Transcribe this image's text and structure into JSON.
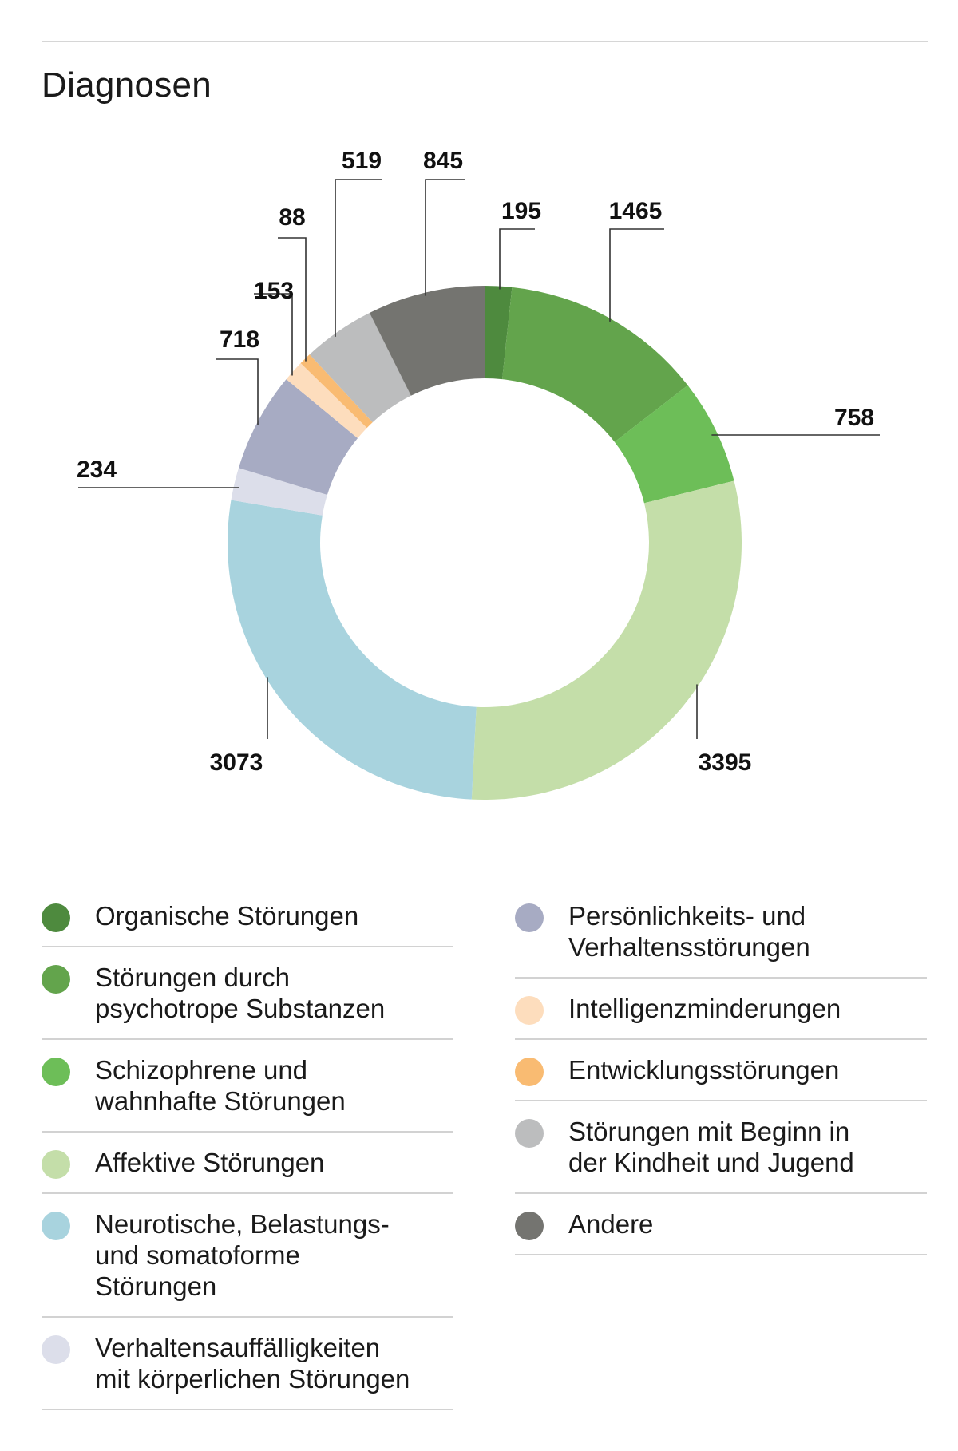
{
  "title": "Diagnosen",
  "chart_data": {
    "type": "pie",
    "variant": "donut",
    "start_angle_deg": 0,
    "direction": "clockwise",
    "slices": [
      {
        "label": "Organische Störungen",
        "value": 195,
        "value_label": "195",
        "color": "#4e8a3e"
      },
      {
        "label": "Störungen durch psychotrope Substanzen",
        "value": 1465,
        "value_label": "1465",
        "color": "#63a44c"
      },
      {
        "label": "Schizophrene und wahnhafte Störungen",
        "value": 758,
        "value_label": "758",
        "color": "#6dbe58"
      },
      {
        "label": "Affektive Störungen",
        "value": 3395,
        "value_label": "3395",
        "color": "#c4dea9"
      },
      {
        "label": "Neurotische, Belastungs- und somatoforme Störungen",
        "value": 3073,
        "value_label": "3073",
        "color": "#a8d3de"
      },
      {
        "label": "Verhaltensauffälligkeiten mit körperlichen Störungen",
        "value": 234,
        "value_label": "234",
        "color": "#dcdeea"
      },
      {
        "label": "Persönlichkeits- und Verhaltensstörungen",
        "value": 718,
        "value_label": "718",
        "color": "#a7abc3"
      },
      {
        "label": "Intelligenzminderungen",
        "value": 153,
        "value_label": "153",
        "color": "#fdddbd"
      },
      {
        "label": "Entwicklungsstörungen",
        "value": 88,
        "value_label": "88",
        "color": "#f9bb72"
      },
      {
        "label": "Störungen mit Beginn in der Kindheit und Jugend",
        "value": 519,
        "value_label": "519",
        "color": "#bcbdbe"
      },
      {
        "label": "Andere",
        "value": 845,
        "value_label": "845",
        "color": "#747470"
      }
    ]
  },
  "legend": {
    "left": [
      {
        "text": "Organische Störungen",
        "color": "#4e8a3e"
      },
      {
        "text": "Störungen durch\npsychotrope Substanzen",
        "color": "#63a44c"
      },
      {
        "text": "Schizophrene und\nwahnhafte Störungen",
        "color": "#6dbe58"
      },
      {
        "text": "Affektive Störungen",
        "color": "#c4dea9"
      },
      {
        "text": "Neurotische, Belastungs-\nund somatoforme\nStörungen",
        "color": "#a8d3de"
      },
      {
        "text": "Verhaltensauffälligkeiten\nmit körperlichen Störungen",
        "color": "#dcdeea"
      }
    ],
    "right": [
      {
        "text": "Persönlichkeits- und\nVerhaltensstörungen",
        "color": "#a7abc3"
      },
      {
        "text": "Intelligenzminderungen",
        "color": "#fdddbd"
      },
      {
        "text": "Entwicklungsstörungen",
        "color": "#f9bb72"
      },
      {
        "text": "Störungen mit Beginn in\nder Kindheit und Jugend",
        "color": "#bcbdbe"
      },
      {
        "text": "Andere",
        "color": "#747470"
      }
    ]
  }
}
